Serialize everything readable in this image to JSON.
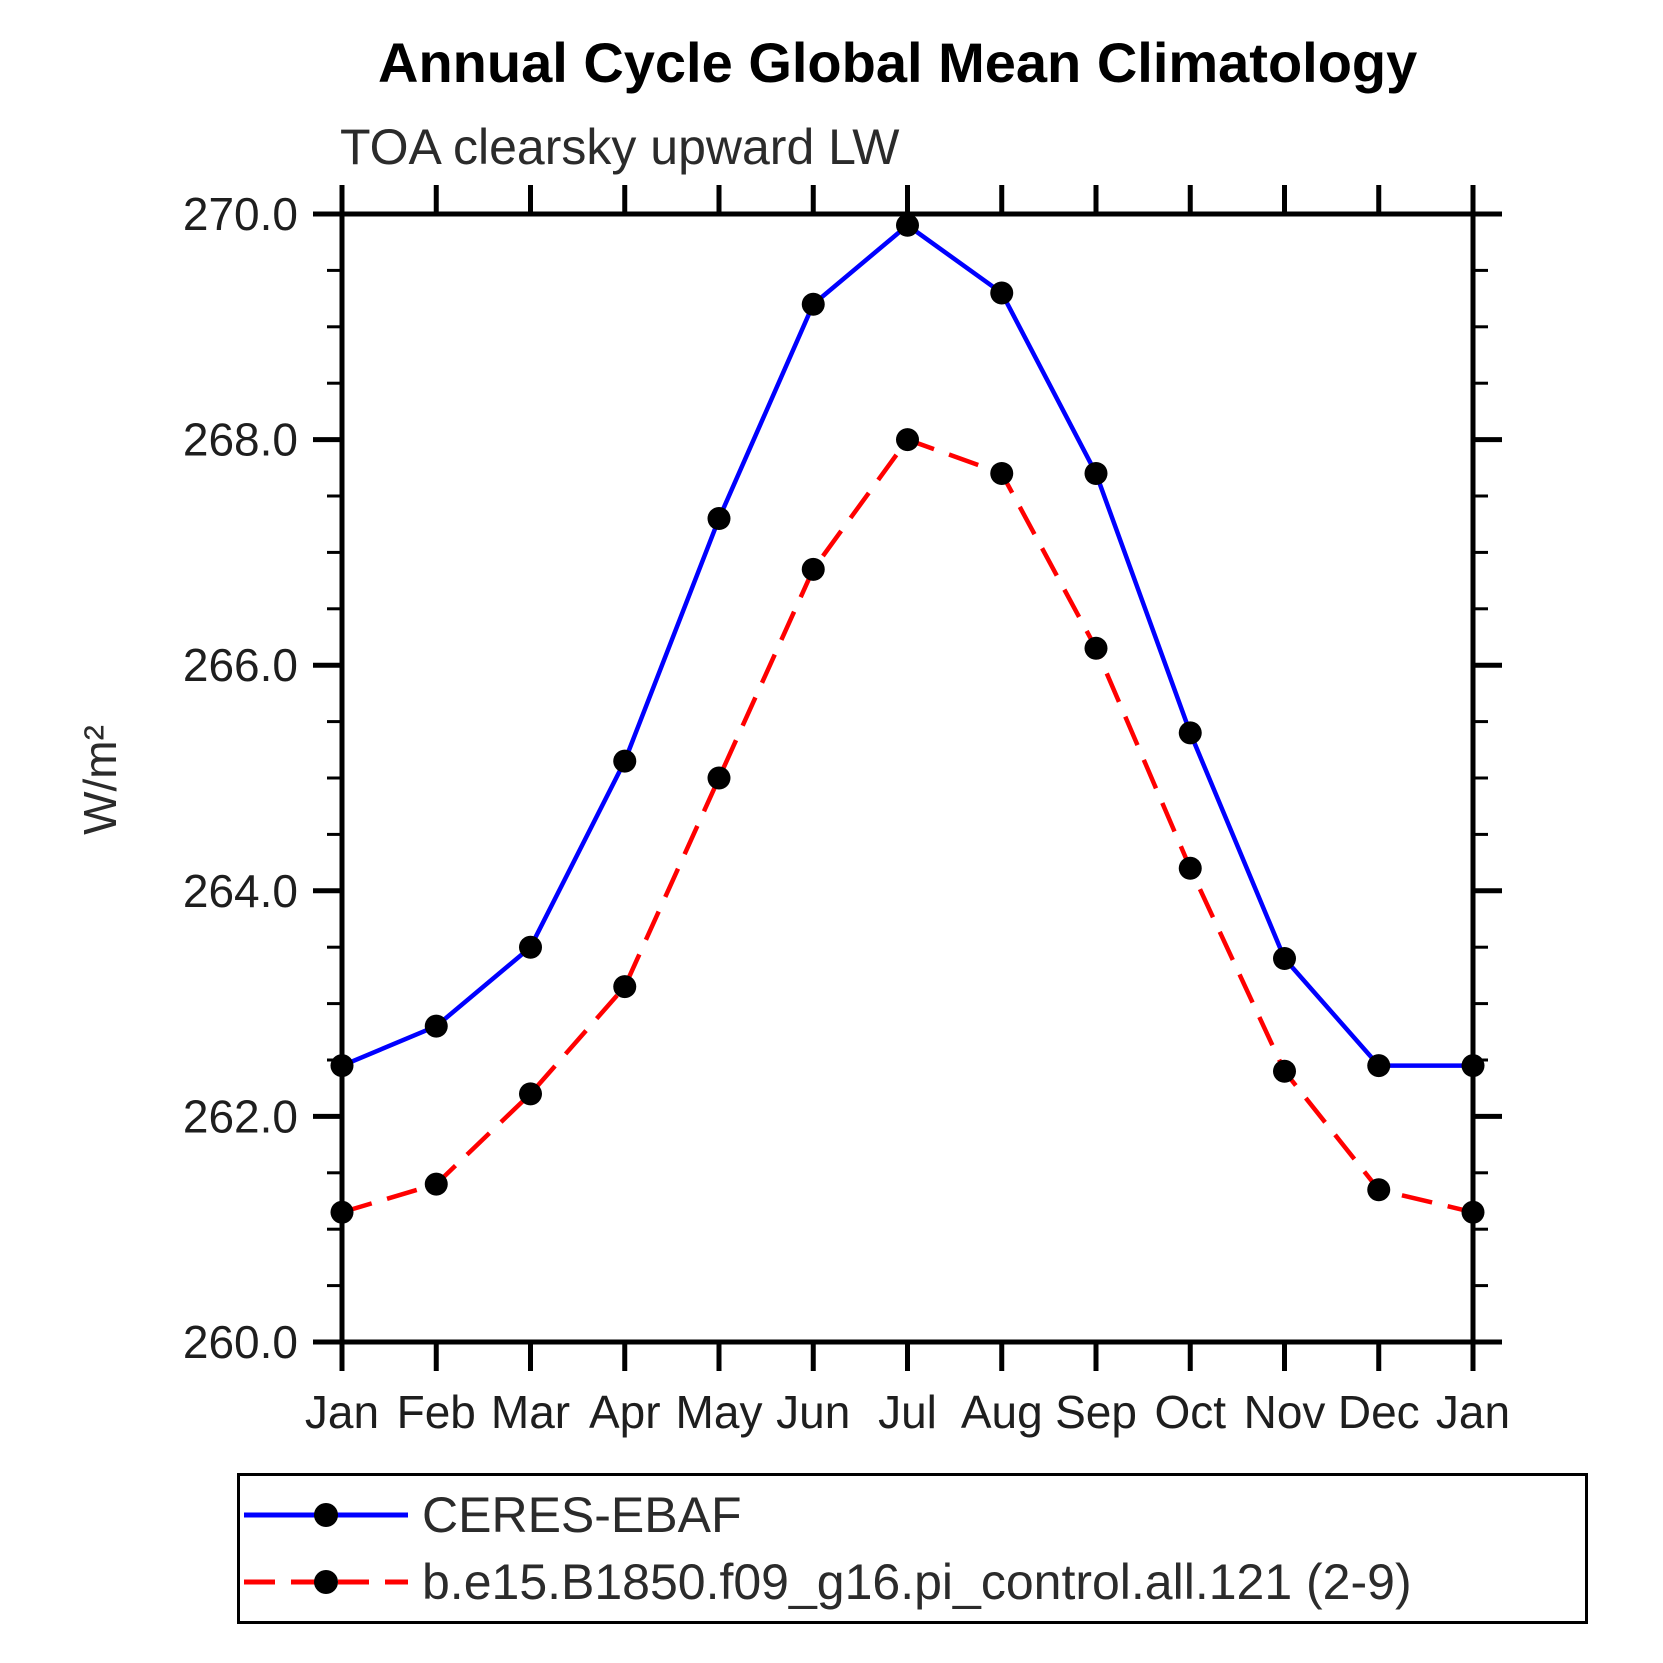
{
  "chart_data": {
    "type": "line",
    "title": "Annual Cycle Global Mean Climatology",
    "subtitle": "TOA clearsky upward LW",
    "ylabel": "W/m²",
    "categories": [
      "Jan",
      "Feb",
      "Mar",
      "Apr",
      "May",
      "Jun",
      "Jul",
      "Aug",
      "Sep",
      "Oct",
      "Nov",
      "Dec",
      "Jan"
    ],
    "series": [
      {
        "name": "CERES-EBAF",
        "color": "#0000ff",
        "line_style": "solid",
        "marker": "circle",
        "marker_color": "#000000",
        "values": [
          262.45,
          262.8,
          263.5,
          265.15,
          267.3,
          269.2,
          269.9,
          269.3,
          267.7,
          265.4,
          263.4,
          262.45,
          262.45
        ]
      },
      {
        "name": "b.e15.B1850.f09_g16.pi_control.all.121 (2-9)",
        "color": "#ff0000",
        "line_style": "dashed",
        "marker": "circle",
        "marker_color": "#000000",
        "values": [
          261.15,
          261.4,
          262.2,
          263.15,
          265.0,
          266.85,
          268.0,
          267.7,
          266.15,
          264.2,
          262.4,
          261.35,
          261.15
        ]
      }
    ],
    "ylim": [
      260.0,
      270.0
    ],
    "yticks_major": [
      260.0,
      262.0,
      264.0,
      266.0,
      268.0,
      270.0
    ],
    "ytick_labels": [
      "260.0",
      "262.0",
      "264.0",
      "266.0",
      "268.0",
      "270.0"
    ],
    "y_minor_step": 0.5,
    "grid": false,
    "legend_position": "bottom-left"
  }
}
